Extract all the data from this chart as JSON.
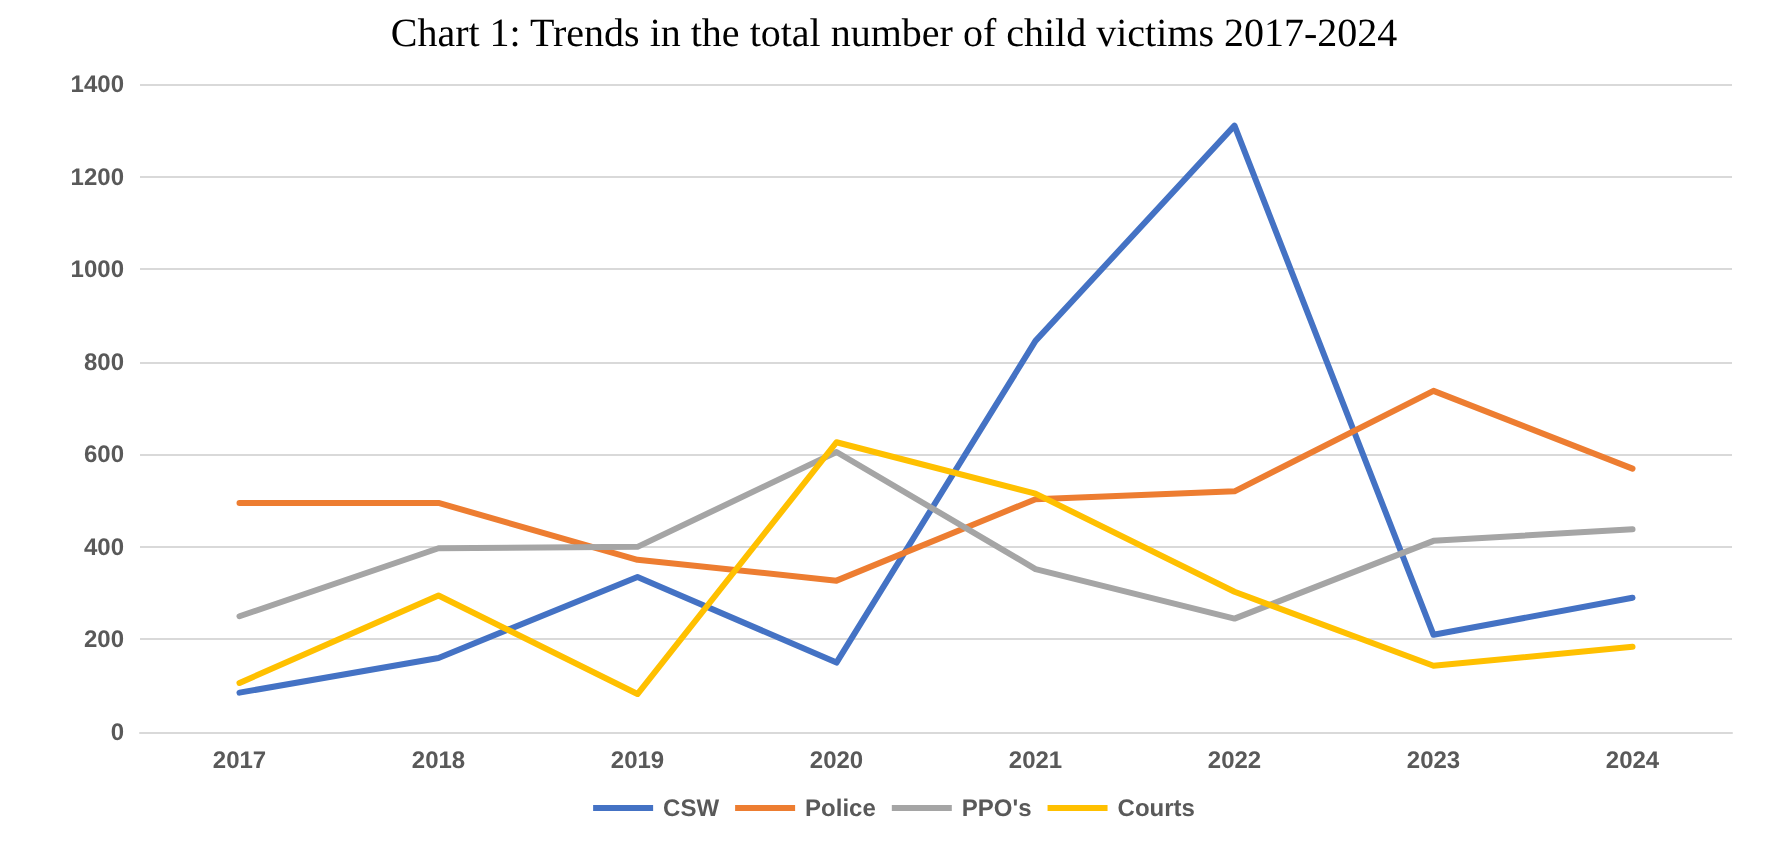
{
  "chart_data": {
    "type": "line",
    "title": "Chart 1: Trends in the total number of child victims 2017-2024",
    "categories": [
      "2017",
      "2018",
      "2019",
      "2020",
      "2021",
      "2022",
      "2023",
      "2024"
    ],
    "series": [
      {
        "name": "CSW",
        "color": "#4472c4",
        "values": [
          85,
          160,
          335,
          150,
          845,
          1310,
          210,
          290
        ]
      },
      {
        "name": "Police",
        "color": "#ed7d31",
        "values": [
          495,
          495,
          372,
          327,
          503,
          520,
          737,
          569
        ]
      },
      {
        "name": "PPO's",
        "color": "#a5a5a5",
        "values": [
          250,
          397,
          400,
          605,
          352,
          245,
          413,
          438
        ]
      },
      {
        "name": "Courts",
        "color": "#ffc000",
        "values": [
          106,
          295,
          82,
          626,
          515,
          303,
          143,
          184
        ]
      }
    ],
    "ylim": [
      0,
      1400
    ],
    "yticks": [
      0,
      200,
      400,
      600,
      800,
      1000,
      1200,
      1400
    ],
    "grid": "y",
    "legend": "bottom",
    "marker": "none",
    "line_style": "solid"
  }
}
